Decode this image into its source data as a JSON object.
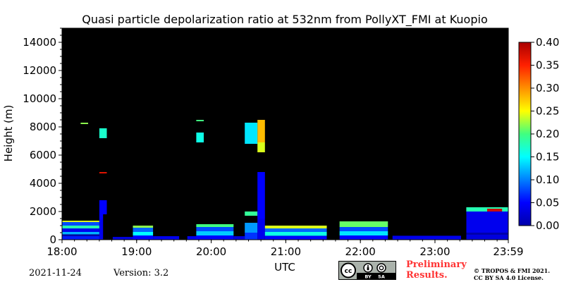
{
  "chart_data": {
    "type": "heatmap",
    "title": "Quasi particle depolarization ratio at 532nm from PollyXT_FMI at Kuopio",
    "xlabel": "UTC",
    "ylabel": "Height (m)",
    "x_ticks": [
      "18:00",
      "19:00",
      "20:00",
      "21:00",
      "22:00",
      "23:00",
      "23:59"
    ],
    "x_tick_hours": [
      18,
      19,
      20,
      21,
      22,
      23,
      23.9833
    ],
    "y_ticks": [
      0,
      2000,
      4000,
      6000,
      8000,
      10000,
      12000,
      14000
    ],
    "xlim": [
      18,
      23.9833
    ],
    "ylim": [
      0,
      15000
    ],
    "colorbar": {
      "ticks": [
        "0.00",
        "0.05",
        "0.10",
        "0.15",
        "0.20",
        "0.25",
        "0.30",
        "0.35",
        "0.40"
      ],
      "range": [
        0,
        0.4
      ],
      "colormap": "jet"
    },
    "background": "#000000",
    "gaps_hours": [
      [
        18.55,
        18.62
      ],
      [
        18.62,
        18.68
      ],
      [
        19.57,
        19.68
      ],
      [
        21.55,
        21.72
      ],
      [
        22.37,
        22.43
      ],
      [
        23.35,
        23.42
      ]
    ],
    "cells": [
      {
        "t0": 18.0,
        "t1": 18.5,
        "h0": 0,
        "h1": 250,
        "v": 0.06
      },
      {
        "t0": 18.0,
        "t1": 18.5,
        "h0": 250,
        "h1": 380,
        "v": 0.0
      },
      {
        "t0": 18.0,
        "t1": 18.5,
        "h0": 380,
        "h1": 550,
        "v": 0.12
      },
      {
        "t0": 18.0,
        "t1": 18.5,
        "h0": 550,
        "h1": 800,
        "v": 0.04
      },
      {
        "t0": 18.0,
        "t1": 18.5,
        "h0": 800,
        "h1": 1000,
        "v": 0.18
      },
      {
        "t0": 18.0,
        "t1": 18.5,
        "h0": 1000,
        "h1": 1250,
        "v": 0.08
      },
      {
        "t0": 18.0,
        "t1": 18.5,
        "h0": 1250,
        "h1": 1350,
        "v": 0.24
      },
      {
        "t0": 18.5,
        "t1": 18.62,
        "h0": 0,
        "h1": 1500,
        "v": 0.04
      },
      {
        "t0": 18.5,
        "t1": 18.6,
        "h0": 1500,
        "h1": 2800,
        "v": 0.05
      },
      {
        "t0": 18.5,
        "t1": 18.6,
        "h0": 4700,
        "h1": 4800,
        "v": 0.37
      },
      {
        "t0": 18.5,
        "t1": 18.6,
        "h0": 7200,
        "h1": 7900,
        "v": 0.17
      },
      {
        "t0": 18.25,
        "t1": 18.35,
        "h0": 8200,
        "h1": 8300,
        "v": 0.22
      },
      {
        "t0": 18.62,
        "t1": 18.95,
        "h0": 0,
        "h1": 200,
        "v": 0.03
      },
      {
        "t0": 18.95,
        "t1": 19.22,
        "h0": 0,
        "h1": 300,
        "v": 0.05
      },
      {
        "t0": 18.95,
        "t1": 19.22,
        "h0": 300,
        "h1": 550,
        "v": 0.15
      },
      {
        "t0": 18.95,
        "t1": 19.22,
        "h0": 550,
        "h1": 850,
        "v": 0.09
      },
      {
        "t0": 18.95,
        "t1": 19.22,
        "h0": 850,
        "h1": 1000,
        "v": 0.22
      },
      {
        "t0": 19.22,
        "t1": 19.8,
        "h0": 0,
        "h1": 250,
        "v": 0.04
      },
      {
        "t0": 19.8,
        "t1": 20.3,
        "h0": 0,
        "h1": 300,
        "v": 0.05
      },
      {
        "t0": 19.8,
        "t1": 20.3,
        "h0": 300,
        "h1": 600,
        "v": 0.13
      },
      {
        "t0": 19.8,
        "t1": 20.3,
        "h0": 600,
        "h1": 900,
        "v": 0.08
      },
      {
        "t0": 19.8,
        "t1": 20.3,
        "h0": 900,
        "h1": 1100,
        "v": 0.2
      },
      {
        "t0": 19.8,
        "t1": 19.9,
        "h0": 6900,
        "h1": 7600,
        "v": 0.16
      },
      {
        "t0": 19.8,
        "t1": 19.9,
        "h0": 8400,
        "h1": 8500,
        "v": 0.2
      },
      {
        "t0": 20.3,
        "t1": 20.45,
        "h0": 0,
        "h1": 250,
        "v": 0.03
      },
      {
        "t0": 20.45,
        "t1": 20.62,
        "h0": 0,
        "h1": 500,
        "v": 0.07
      },
      {
        "t0": 20.45,
        "t1": 20.62,
        "h0": 500,
        "h1": 1200,
        "v": 0.11
      },
      {
        "t0": 20.45,
        "t1": 20.62,
        "h0": 1700,
        "h1": 2000,
        "v": 0.19
      },
      {
        "t0": 20.45,
        "t1": 20.62,
        "h0": 6800,
        "h1": 8300,
        "v": 0.14
      },
      {
        "t0": 20.62,
        "t1": 20.72,
        "h0": 0,
        "h1": 1500,
        "v": 0.04
      },
      {
        "t0": 20.62,
        "t1": 20.72,
        "h0": 1500,
        "h1": 4800,
        "v": 0.05
      },
      {
        "t0": 20.62,
        "t1": 20.72,
        "h0": 6200,
        "h1": 6900,
        "v": 0.24
      },
      {
        "t0": 20.62,
        "t1": 20.72,
        "h0": 6900,
        "h1": 8500,
        "v": 0.28
      },
      {
        "t0": 20.72,
        "t1": 21.55,
        "h0": 0,
        "h1": 280,
        "v": 0.05
      },
      {
        "t0": 20.72,
        "t1": 21.55,
        "h0": 280,
        "h1": 550,
        "v": 0.16
      },
      {
        "t0": 20.72,
        "t1": 21.55,
        "h0": 550,
        "h1": 800,
        "v": 0.09
      },
      {
        "t0": 20.72,
        "t1": 21.55,
        "h0": 800,
        "h1": 1000,
        "v": 0.24
      },
      {
        "t0": 21.72,
        "t1": 22.37,
        "h0": 0,
        "h1": 300,
        "v": 0.05
      },
      {
        "t0": 21.72,
        "t1": 22.37,
        "h0": 300,
        "h1": 600,
        "v": 0.14
      },
      {
        "t0": 21.72,
        "t1": 22.37,
        "h0": 600,
        "h1": 900,
        "v": 0.08
      },
      {
        "t0": 21.72,
        "t1": 22.37,
        "h0": 900,
        "h1": 1300,
        "v": 0.21
      },
      {
        "t0": 22.43,
        "t1": 23.35,
        "h0": 0,
        "h1": 280,
        "v": 0.04
      },
      {
        "t0": 23.42,
        "t1": 23.98,
        "h0": 0,
        "h1": 350,
        "v": 0.03
      },
      {
        "t0": 23.42,
        "t1": 23.98,
        "h0": 350,
        "h1": 500,
        "v": 0.0
      },
      {
        "t0": 23.42,
        "t1": 23.98,
        "h0": 500,
        "h1": 2000,
        "v": 0.04
      },
      {
        "t0": 23.42,
        "t1": 23.98,
        "h0": 2000,
        "h1": 2300,
        "v": 0.18
      },
      {
        "t0": 23.7,
        "t1": 23.9,
        "h0": 2000,
        "h1": 2200,
        "v": 0.38
      }
    ]
  },
  "footer": {
    "date": "2021-11-24",
    "version": "Version: 3.2",
    "license_badge": [
      "cc",
      "BY",
      "SA"
    ],
    "preliminary": [
      "Preliminary",
      "Results."
    ],
    "copyright": [
      "© TROPOS & FMI 2021.",
      "CC BY SA 4.0 License."
    ]
  }
}
